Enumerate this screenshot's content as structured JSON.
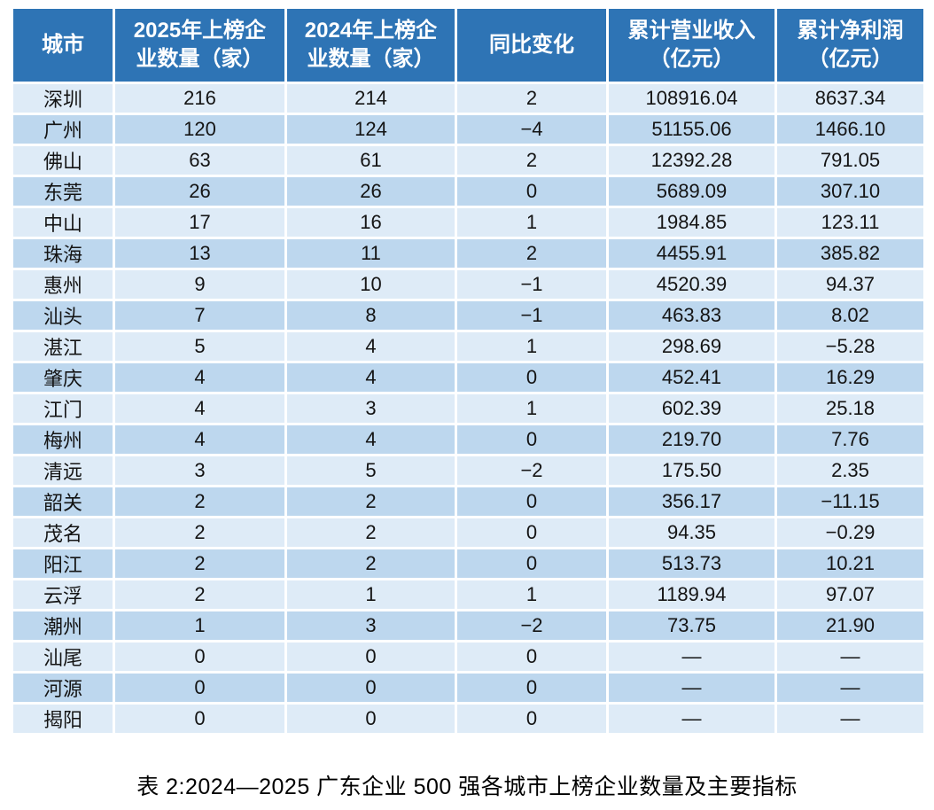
{
  "page": {
    "background_color": "#ffffff"
  },
  "table": {
    "header_bg_color": "#2E74B5",
    "header_text_color": "#ffffff",
    "row_light_bg_color": "#DEEBF7",
    "row_dark_bg_color": "#BDD7EE",
    "columns": [
      {
        "label": "城市"
      },
      {
        "label": "2025年上榜企\n业数量（家）"
      },
      {
        "label": "2024年上榜企\n业数量（家）"
      },
      {
        "label": "同比变化"
      },
      {
        "label": "累计营业收入\n（亿元）"
      },
      {
        "label": "累计净利润\n（亿元）"
      }
    ],
    "rows": [
      [
        "深圳",
        "216",
        "214",
        "2",
        "108916.04",
        "8637.34"
      ],
      [
        "广州",
        "120",
        "124",
        "−4",
        "51155.06",
        "1466.10"
      ],
      [
        "佛山",
        "63",
        "61",
        "2",
        "12392.28",
        "791.05"
      ],
      [
        "东莞",
        "26",
        "26",
        "0",
        "5689.09",
        "307.10"
      ],
      [
        "中山",
        "17",
        "16",
        "1",
        "1984.85",
        "123.11"
      ],
      [
        "珠海",
        "13",
        "11",
        "2",
        "4455.91",
        "385.82"
      ],
      [
        "惠州",
        "9",
        "10",
        "−1",
        "4520.39",
        "94.37"
      ],
      [
        "汕头",
        "7",
        "8",
        "−1",
        "463.83",
        "8.02"
      ],
      [
        "湛江",
        "5",
        "4",
        "1",
        "298.69",
        "−5.28"
      ],
      [
        "肇庆",
        "4",
        "4",
        "0",
        "452.41",
        "16.29"
      ],
      [
        "江门",
        "4",
        "3",
        "1",
        "602.39",
        "25.18"
      ],
      [
        "梅州",
        "4",
        "4",
        "0",
        "219.70",
        "7.76"
      ],
      [
        "清远",
        "3",
        "5",
        "−2",
        "175.50",
        "2.35"
      ],
      [
        "韶关",
        "2",
        "2",
        "0",
        "356.17",
        "−11.15"
      ],
      [
        "茂名",
        "2",
        "2",
        "0",
        "94.35",
        "−0.29"
      ],
      [
        "阳江",
        "2",
        "2",
        "0",
        "513.73",
        "10.21"
      ],
      [
        "云浮",
        "2",
        "1",
        "1",
        "1189.94",
        "97.07"
      ],
      [
        "潮州",
        "1",
        "3",
        "−2",
        "73.75",
        "21.90"
      ],
      [
        "汕尾",
        "0",
        "0",
        "0",
        "—",
        "—"
      ],
      [
        "河源",
        "0",
        "0",
        "0",
        "—",
        "—"
      ],
      [
        "揭阳",
        "0",
        "0",
        "0",
        "—",
        "—"
      ]
    ]
  },
  "caption": "表 2:2024—2025 广东企业 500 强各城市上榜企业数量及主要指标"
}
